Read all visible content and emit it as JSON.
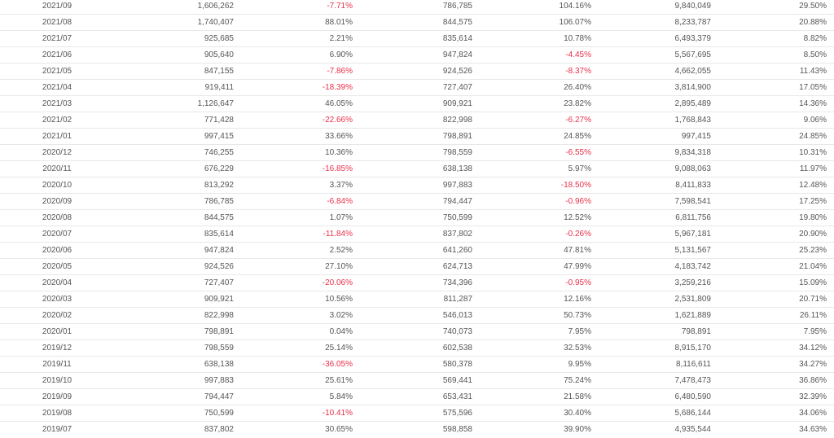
{
  "table": {
    "rows": [
      [
        "2021/09",
        "1,606,262",
        "-7.71%",
        "786,785",
        "104.16%",
        "9,840,049",
        "29.50%"
      ],
      [
        "2021/08",
        "1,740,407",
        "88.01%",
        "844,575",
        "106.07%",
        "8,233,787",
        "20.88%"
      ],
      [
        "2021/07",
        "925,685",
        "2.21%",
        "835,614",
        "10.78%",
        "6,493,379",
        "8.82%"
      ],
      [
        "2021/06",
        "905,640",
        "6.90%",
        "947,824",
        "-4.45%",
        "5,567,695",
        "8.50%"
      ],
      [
        "2021/05",
        "847,155",
        "-7.86%",
        "924,526",
        "-8.37%",
        "4,662,055",
        "11.43%"
      ],
      [
        "2021/04",
        "919,411",
        "-18.39%",
        "727,407",
        "26.40%",
        "3,814,900",
        "17.05%"
      ],
      [
        "2021/03",
        "1,126,647",
        "46.05%",
        "909,921",
        "23.82%",
        "2,895,489",
        "14.36%"
      ],
      [
        "2021/02",
        "771,428",
        "-22.66%",
        "822,998",
        "-6.27%",
        "1,768,843",
        "9.06%"
      ],
      [
        "2021/01",
        "997,415",
        "33.66%",
        "798,891",
        "24.85%",
        "997,415",
        "24.85%"
      ],
      [
        "2020/12",
        "746,255",
        "10.36%",
        "798,559",
        "-6.55%",
        "9,834,318",
        "10.31%"
      ],
      [
        "2020/11",
        "676,229",
        "-16.85%",
        "638,138",
        "5.97%",
        "9,088,063",
        "11.97%"
      ],
      [
        "2020/10",
        "813,292",
        "3.37%",
        "997,883",
        "-18.50%",
        "8,411,833",
        "12.48%"
      ],
      [
        "2020/09",
        "786,785",
        "-6.84%",
        "794,447",
        "-0.96%",
        "7,598,541",
        "17.25%"
      ],
      [
        "2020/08",
        "844,575",
        "1.07%",
        "750,599",
        "12.52%",
        "6,811,756",
        "19.80%"
      ],
      [
        "2020/07",
        "835,614",
        "-11.84%",
        "837,802",
        "-0.26%",
        "5,967,181",
        "20.90%"
      ],
      [
        "2020/06",
        "947,824",
        "2.52%",
        "641,260",
        "47.81%",
        "5,131,567",
        "25.23%"
      ],
      [
        "2020/05",
        "924,526",
        "27.10%",
        "624,713",
        "47.99%",
        "4,183,742",
        "21.04%"
      ],
      [
        "2020/04",
        "727,407",
        "-20.06%",
        "734,396",
        "-0.95%",
        "3,259,216",
        "15.09%"
      ],
      [
        "2020/03",
        "909,921",
        "10.56%",
        "811,287",
        "12.16%",
        "2,531,809",
        "20.71%"
      ],
      [
        "2020/02",
        "822,998",
        "3.02%",
        "546,013",
        "50.73%",
        "1,621,889",
        "26.11%"
      ],
      [
        "2020/01",
        "798,891",
        "0.04%",
        "740,073",
        "7.95%",
        "798,891",
        "7.95%"
      ],
      [
        "2019/12",
        "798,559",
        "25.14%",
        "602,538",
        "32.53%",
        "8,915,170",
        "34.12%"
      ],
      [
        "2019/11",
        "638,138",
        "-36.05%",
        "580,378",
        "9.95%",
        "8,116,611",
        "34.27%"
      ],
      [
        "2019/10",
        "997,883",
        "25.61%",
        "569,441",
        "75.24%",
        "7,478,473",
        "36.86%"
      ],
      [
        "2019/09",
        "794,447",
        "5.84%",
        "653,431",
        "21.58%",
        "6,480,590",
        "32.39%"
      ],
      [
        "2019/08",
        "750,599",
        "-10.41%",
        "575,596",
        "30.40%",
        "5,686,144",
        "34.06%"
      ],
      [
        "2019/07",
        "837,802",
        "30.65%",
        "598,858",
        "39.90%",
        "4,935,544",
        "34.63%"
      ]
    ],
    "colors": {
      "text": "#555555",
      "negative": "#e8304a",
      "grid": "#e8e8e8"
    }
  }
}
